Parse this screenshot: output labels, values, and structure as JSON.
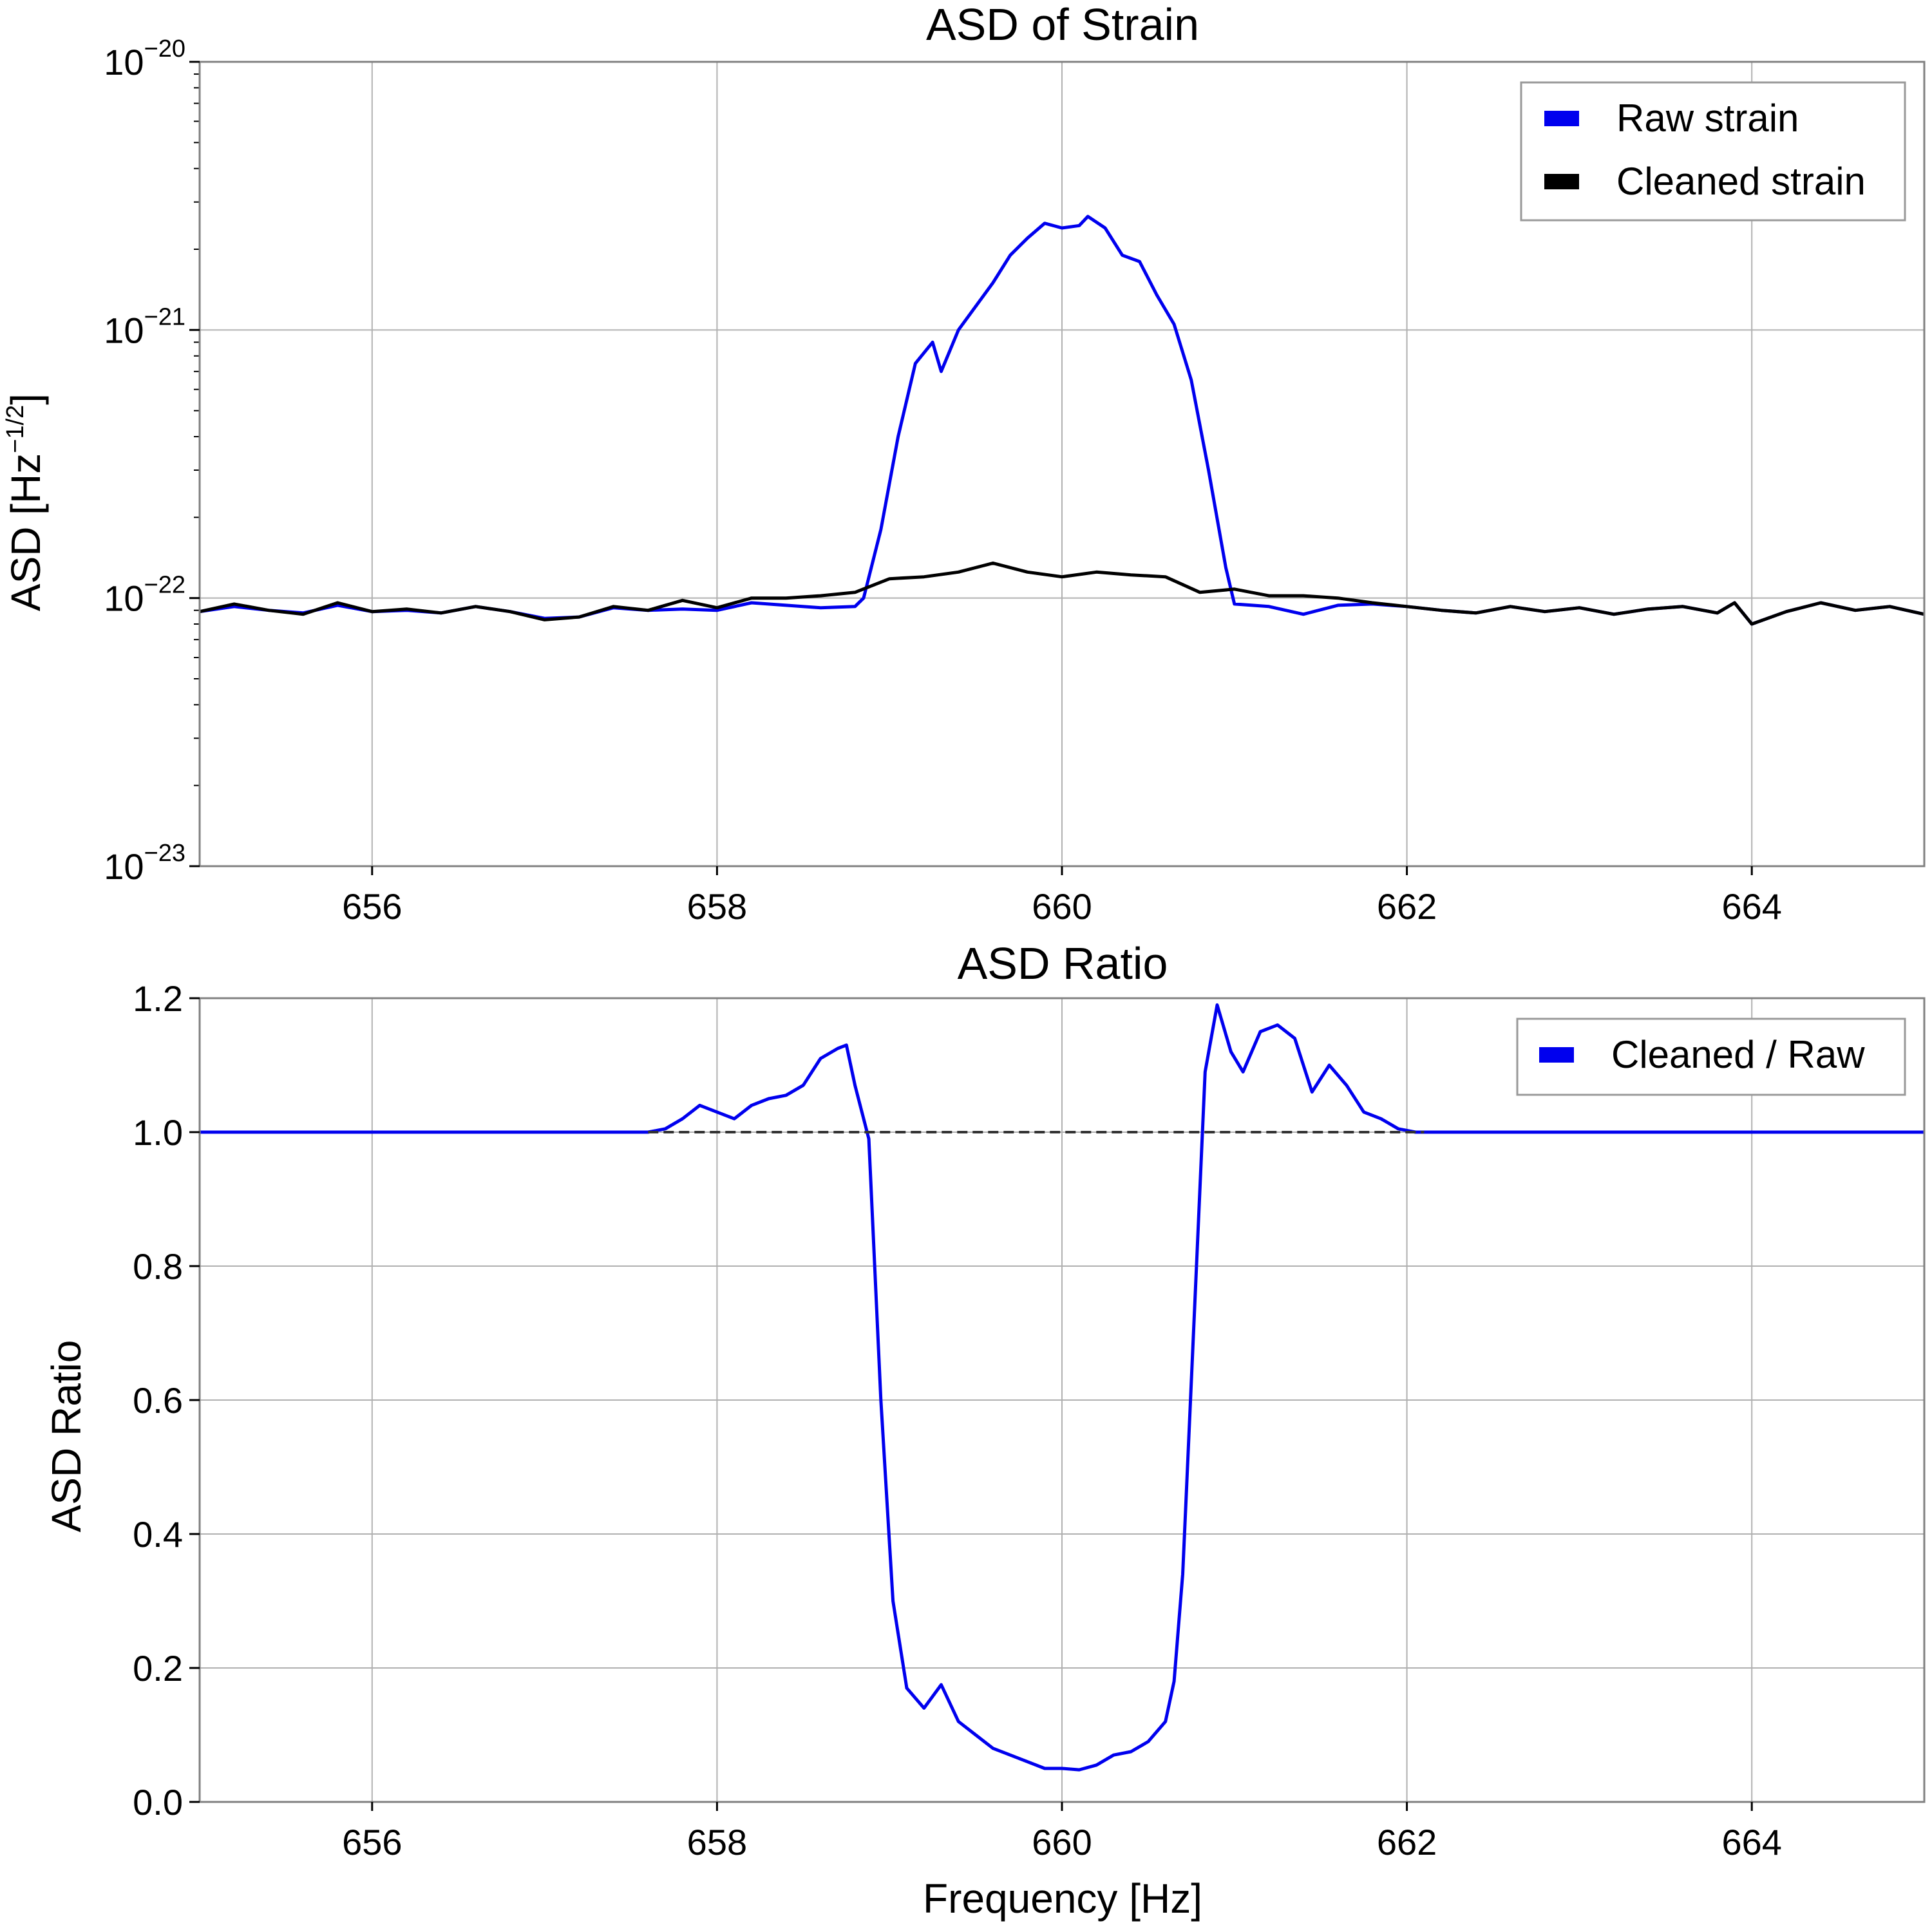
{
  "colors": {
    "raw": "#0000ee",
    "cleaned": "#000000",
    "ratio": "#0000ee",
    "reference_line": "#333333",
    "grid": "#b0b0b0",
    "frame": "#808080"
  },
  "chart_data": [
    {
      "type": "line",
      "title": "ASD of Strain",
      "xlabel": "",
      "ylabel_text": "ASD [Hz",
      "ylabel_sup": "−1/2",
      "ylabel_close": "]",
      "y_scale": "log",
      "xlim": [
        655,
        665
      ],
      "ylim": [
        1e-23,
        1e-20
      ],
      "grid": true,
      "legend_position": "top-right",
      "x_ticks": [
        {
          "value": 656,
          "label": "656"
        },
        {
          "value": 658,
          "label": "658"
        },
        {
          "value": 660,
          "label": "660"
        },
        {
          "value": 662,
          "label": "662"
        },
        {
          "value": 664,
          "label": "664"
        }
      ],
      "y_ticks": [
        {
          "value": 1e-20,
          "base": "10",
          "exp": "−20"
        },
        {
          "value": 1e-21,
          "base": "10",
          "exp": "−21"
        },
        {
          "value": 1e-22,
          "base": "10",
          "exp": "−22"
        },
        {
          "value": 1e-23,
          "base": "10",
          "exp": "−23"
        }
      ],
      "series": [
        {
          "name": "Raw strain",
          "color": "#0000ee",
          "points": [
            [
              655.0,
              8.9e-23
            ],
            [
              655.2,
              9.3e-23
            ],
            [
              655.4,
              9e-23
            ],
            [
              655.6,
              8.8e-23
            ],
            [
              655.8,
              9.4e-23
            ],
            [
              656.0,
              8.9e-23
            ],
            [
              656.2,
              9e-23
            ],
            [
              656.4,
              8.8e-23
            ],
            [
              656.6,
              9.3e-23
            ],
            [
              656.8,
              8.9e-23
            ],
            [
              657.0,
              8.4e-23
            ],
            [
              657.2,
              8.5e-23
            ],
            [
              657.4,
              9.2e-23
            ],
            [
              657.6,
              9e-23
            ],
            [
              657.8,
              9.1e-23
            ],
            [
              658.0,
              9e-23
            ],
            [
              658.2,
              9.6e-23
            ],
            [
              658.4,
              9.4e-23
            ],
            [
              658.6,
              9.2e-23
            ],
            [
              658.8,
              9.3e-23
            ],
            [
              658.85,
              1e-22
            ],
            [
              658.95,
              1.8e-22
            ],
            [
              659.05,
              4e-22
            ],
            [
              659.15,
              7.5e-22
            ],
            [
              659.25,
              9e-22
            ],
            [
              659.3,
              7e-22
            ],
            [
              659.4,
              1e-21
            ],
            [
              659.6,
              1.5e-21
            ],
            [
              659.7,
              1.9e-21
            ],
            [
              659.8,
              2.2e-21
            ],
            [
              659.9,
              2.5e-21
            ],
            [
              660.0,
              2.4e-21
            ],
            [
              660.1,
              2.45e-21
            ],
            [
              660.15,
              2.65e-21
            ],
            [
              660.25,
              2.4e-21
            ],
            [
              660.35,
              1.9e-21
            ],
            [
              660.45,
              1.8e-21
            ],
            [
              660.55,
              1.35e-21
            ],
            [
              660.65,
              1.05e-21
            ],
            [
              660.75,
              6.5e-22
            ],
            [
              660.85,
              3e-22
            ],
            [
              660.95,
              1.3e-22
            ],
            [
              661.0,
              9.5e-23
            ],
            [
              661.2,
              9.3e-23
            ],
            [
              661.4,
              8.7e-23
            ],
            [
              661.6,
              9.4e-23
            ],
            [
              661.8,
              9.5e-23
            ],
            [
              662.0,
              9.3e-23
            ],
            [
              662.2,
              9e-23
            ],
            [
              662.4,
              8.8e-23
            ],
            [
              662.6,
              9.3e-23
            ],
            [
              662.8,
              8.9e-23
            ],
            [
              663.0,
              9.2e-23
            ],
            [
              663.2,
              8.7e-23
            ],
            [
              663.4,
              9.1e-23
            ],
            [
              663.6,
              9.3e-23
            ],
            [
              663.8,
              8.8e-23
            ],
            [
              663.9,
              9.6e-23
            ],
            [
              664.0,
              8e-23
            ],
            [
              664.2,
              8.9e-23
            ],
            [
              664.4,
              9.6e-23
            ],
            [
              664.6,
              9e-23
            ],
            [
              664.8,
              9.3e-23
            ],
            [
              665.0,
              8.7e-23
            ]
          ]
        },
        {
          "name": "Cleaned strain",
          "color": "#000000",
          "points": [
            [
              655.0,
              8.9e-23
            ],
            [
              655.2,
              9.5e-23
            ],
            [
              655.4,
              9e-23
            ],
            [
              655.6,
              8.7e-23
            ],
            [
              655.8,
              9.6e-23
            ],
            [
              656.0,
              8.9e-23
            ],
            [
              656.2,
              9.1e-23
            ],
            [
              656.4,
              8.8e-23
            ],
            [
              656.6,
              9.3e-23
            ],
            [
              656.8,
              8.9e-23
            ],
            [
              657.0,
              8.3e-23
            ],
            [
              657.2,
              8.5e-23
            ],
            [
              657.4,
              9.3e-23
            ],
            [
              657.6,
              9e-23
            ],
            [
              657.8,
              9.8e-23
            ],
            [
              658.0,
              9.2e-23
            ],
            [
              658.2,
              1e-22
            ],
            [
              658.4,
              1e-22
            ],
            [
              658.6,
              1.02e-22
            ],
            [
              658.8,
              1.05e-22
            ],
            [
              659.0,
              1.18e-22
            ],
            [
              659.2,
              1.2e-22
            ],
            [
              659.4,
              1.25e-22
            ],
            [
              659.6,
              1.35e-22
            ],
            [
              659.8,
              1.25e-22
            ],
            [
              660.0,
              1.2e-22
            ],
            [
              660.2,
              1.25e-22
            ],
            [
              660.4,
              1.22e-22
            ],
            [
              660.6,
              1.2e-22
            ],
            [
              660.8,
              1.05e-22
            ],
            [
              661.0,
              1.08e-22
            ],
            [
              661.2,
              1.02e-22
            ],
            [
              661.4,
              1.02e-22
            ],
            [
              661.6,
              1e-22
            ],
            [
              661.8,
              9.6e-23
            ],
            [
              662.0,
              9.3e-23
            ],
            [
              662.2,
              9e-23
            ],
            [
              662.4,
              8.8e-23
            ],
            [
              662.6,
              9.3e-23
            ],
            [
              662.8,
              8.9e-23
            ],
            [
              663.0,
              9.2e-23
            ],
            [
              663.2,
              8.7e-23
            ],
            [
              663.4,
              9.1e-23
            ],
            [
              663.6,
              9.3e-23
            ],
            [
              663.8,
              8.8e-23
            ],
            [
              663.9,
              9.6e-23
            ],
            [
              664.0,
              8e-23
            ],
            [
              664.2,
              8.9e-23
            ],
            [
              664.4,
              9.6e-23
            ],
            [
              664.6,
              9e-23
            ],
            [
              664.8,
              9.3e-23
            ],
            [
              665.0,
              8.7e-23
            ]
          ]
        }
      ]
    },
    {
      "type": "line",
      "title": "ASD Ratio",
      "xlabel": "Frequency [Hz]",
      "ylabel": "ASD Ratio",
      "y_scale": "linear",
      "xlim": [
        655,
        665
      ],
      "ylim": [
        0.0,
        1.2
      ],
      "grid": true,
      "legend_position": "top-right",
      "reference_line": {
        "y": 1.0,
        "style": "dashed"
      },
      "x_ticks": [
        {
          "value": 656,
          "label": "656"
        },
        {
          "value": 658,
          "label": "658"
        },
        {
          "value": 660,
          "label": "660"
        },
        {
          "value": 662,
          "label": "662"
        },
        {
          "value": 664,
          "label": "664"
        }
      ],
      "y_ticks": [
        {
          "value": 0.0,
          "label": "0.0"
        },
        {
          "value": 0.2,
          "label": "0.2"
        },
        {
          "value": 0.4,
          "label": "0.4"
        },
        {
          "value": 0.6,
          "label": "0.6"
        },
        {
          "value": 0.8,
          "label": "0.8"
        },
        {
          "value": 1.0,
          "label": "1.0"
        },
        {
          "value": 1.2,
          "label": "1.2"
        }
      ],
      "series": [
        {
          "name": "Cleaned / Raw",
          "color": "#0000ee",
          "points": [
            [
              655.0,
              1.0
            ],
            [
              657.6,
              1.0
            ],
            [
              657.7,
              1.005
            ],
            [
              657.8,
              1.02
            ],
            [
              657.9,
              1.04
            ],
            [
              658.0,
              1.03
            ],
            [
              658.1,
              1.02
            ],
            [
              658.2,
              1.04
            ],
            [
              658.3,
              1.05
            ],
            [
              658.4,
              1.055
            ],
            [
              658.5,
              1.07
            ],
            [
              658.6,
              1.11
            ],
            [
              658.7,
              1.125
            ],
            [
              658.75,
              1.13
            ],
            [
              658.8,
              1.07
            ],
            [
              658.88,
              0.99
            ],
            [
              658.95,
              0.6
            ],
            [
              659.02,
              0.3
            ],
            [
              659.1,
              0.17
            ],
            [
              659.2,
              0.14
            ],
            [
              659.3,
              0.175
            ],
            [
              659.4,
              0.12
            ],
            [
              659.5,
              0.1
            ],
            [
              659.6,
              0.08
            ],
            [
              659.7,
              0.07
            ],
            [
              659.8,
              0.06
            ],
            [
              659.9,
              0.05
            ],
            [
              660.0,
              0.05
            ],
            [
              660.1,
              0.048
            ],
            [
              660.2,
              0.055
            ],
            [
              660.3,
              0.07
            ],
            [
              660.4,
              0.075
            ],
            [
              660.5,
              0.09
            ],
            [
              660.6,
              0.12
            ],
            [
              660.65,
              0.18
            ],
            [
              660.7,
              0.34
            ],
            [
              660.78,
              0.8
            ],
            [
              660.83,
              1.09
            ],
            [
              660.9,
              1.19
            ],
            [
              660.98,
              1.12
            ],
            [
              661.05,
              1.09
            ],
            [
              661.15,
              1.15
            ],
            [
              661.25,
              1.16
            ],
            [
              661.35,
              1.14
            ],
            [
              661.45,
              1.06
            ],
            [
              661.55,
              1.1
            ],
            [
              661.65,
              1.07
            ],
            [
              661.75,
              1.03
            ],
            [
              661.85,
              1.02
            ],
            [
              661.95,
              1.005
            ],
            [
              662.05,
              1.0
            ],
            [
              665.0,
              1.0
            ]
          ]
        }
      ]
    }
  ]
}
